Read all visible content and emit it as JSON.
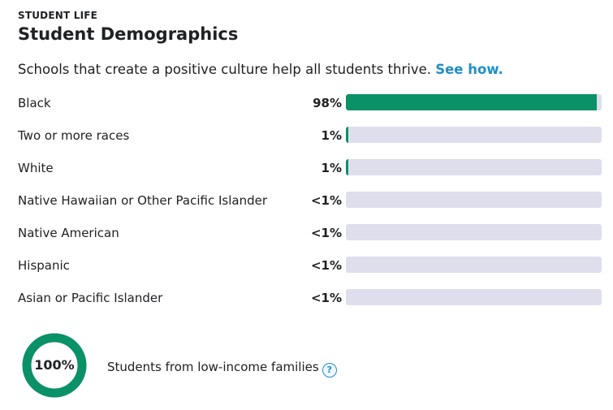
{
  "header": {
    "eyebrow": "STUDENT LIFE",
    "title": "Student Demographics"
  },
  "intro": {
    "text": "Schools that create a positive culture help all students thrive. ",
    "link": "See how."
  },
  "colors": {
    "bar_fill": "#0a9168",
    "bar_track": "#dedeed",
    "link": "#1f8fc7"
  },
  "chart_data": {
    "type": "bar",
    "orientation": "horizontal",
    "categories": [
      "Black",
      "Two or more races",
      "White",
      "Native Hawaiian or Other Pacific Islander",
      "Native American",
      "Hispanic",
      "Asian or Pacific Islander"
    ],
    "value_labels": [
      "98%",
      "1%",
      "1%",
      "<1%",
      "<1%",
      "<1%",
      "<1%"
    ],
    "values": [
      98,
      1,
      1,
      0,
      0,
      0,
      0
    ],
    "xlim": [
      0,
      100
    ]
  },
  "low_income": {
    "value_label": "100%",
    "value": 100,
    "label": "Students from low-income families",
    "help_icon": "question-icon",
    "help_glyph": "?"
  }
}
